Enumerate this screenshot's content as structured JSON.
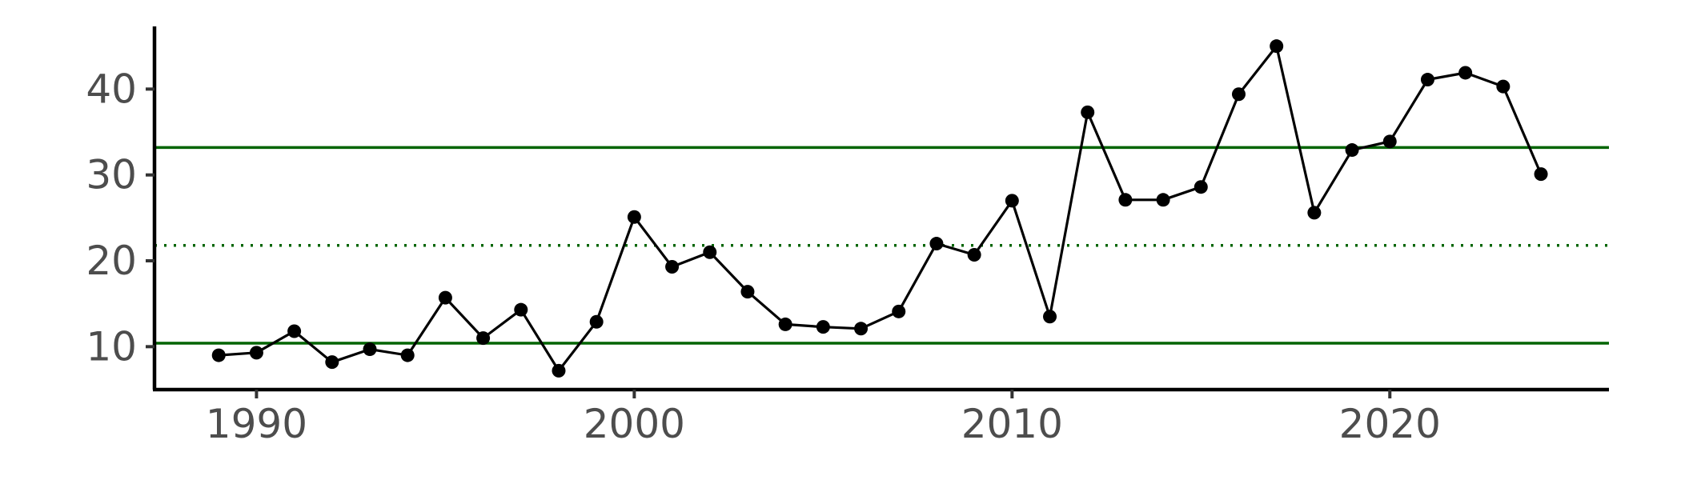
{
  "chart_data": {
    "type": "line",
    "title": "",
    "xlabel": "",
    "ylabel": "",
    "xlim": [
      1987.3,
      2025.8
    ],
    "ylim": [
      5.0,
      47.3
    ],
    "x_ticks": [
      1990,
      2000,
      2010,
      2020
    ],
    "x_tick_labels": [
      "1990",
      "2000",
      "2010",
      "2020"
    ],
    "y_ticks": [
      10,
      20,
      30,
      40
    ],
    "y_tick_labels": [
      "10",
      "20",
      "30",
      "40"
    ],
    "grid": false,
    "legend": "none",
    "series": [
      {
        "color": "#000000",
        "marker": "circle",
        "x": [
          1989,
          1990,
          1991,
          1992,
          1993,
          1994,
          1995,
          1996,
          1997,
          1998,
          1999,
          2000,
          2001,
          2002,
          2003,
          2004,
          2005,
          2006,
          2007,
          2008,
          2009,
          2010,
          2011,
          2012,
          2013,
          2014,
          2015,
          2016,
          2017,
          2018,
          2019,
          2020,
          2021,
          2022,
          2023,
          2024
        ],
        "y": [
          9.0,
          9.3,
          11.8,
          8.2,
          9.7,
          9.0,
          15.7,
          11.0,
          14.3,
          7.2,
          12.9,
          25.1,
          19.3,
          21.0,
          16.4,
          12.6,
          12.3,
          12.1,
          14.1,
          22.0,
          20.7,
          27.0,
          13.5,
          37.3,
          27.1,
          27.1,
          28.6,
          39.4,
          45.0,
          25.6,
          32.9,
          33.9,
          41.1,
          41.9,
          40.3,
          30.1
        ]
      }
    ],
    "reference_lines": [
      {
        "y": 33.2,
        "style": "solid",
        "color": "#006400"
      },
      {
        "y": 21.8,
        "style": "dotted",
        "color": "#006400"
      },
      {
        "y": 10.4,
        "style": "solid",
        "color": "#006400"
      }
    ]
  }
}
